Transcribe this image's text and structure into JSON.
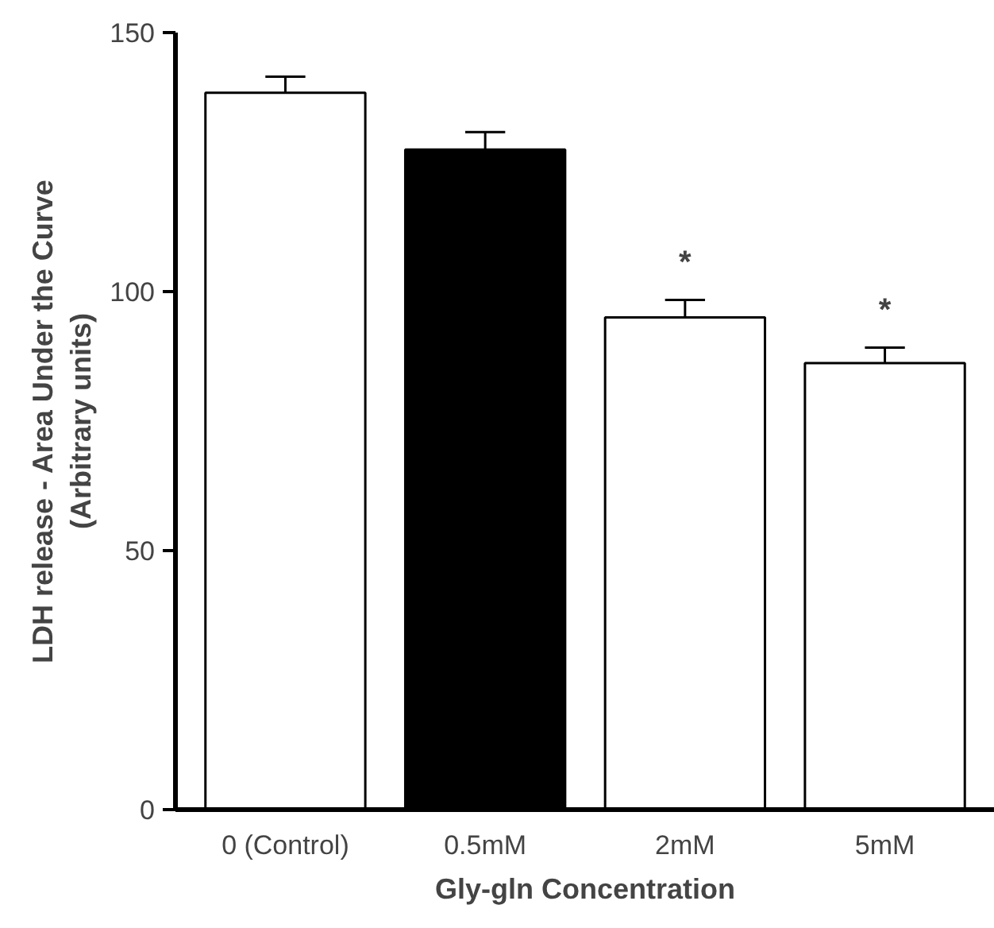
{
  "chart_data": {
    "type": "bar",
    "xlabel": "Gly-gln Concentration",
    "ylabel": "LDH release - Area Under the Curve\n(Arbitrary units)",
    "categories": [
      "0 (Control)",
      "0.5mM",
      "2mM",
      "5mM"
    ],
    "values": [
      138.4,
      127.4,
      95.0,
      86.2
    ],
    "colors": [
      "#ffffff",
      "#000000",
      "#ffffff",
      "#ffffff"
    ],
    "errors": [
      [
        138.4,
        141.5
      ],
      [
        127.4,
        130.8
      ],
      [
        95.0,
        98.4
      ],
      [
        86.2,
        89.2
      ]
    ],
    "ylim": [
      0,
      150
    ],
    "yticks": [
      0,
      50,
      100,
      150
    ],
    "grid": false,
    "annotations": [
      {
        "text": "*",
        "x": "2mM",
        "y": 98.4
      },
      {
        "text": "*",
        "x": "5mM",
        "y": 89.2
      }
    ]
  }
}
